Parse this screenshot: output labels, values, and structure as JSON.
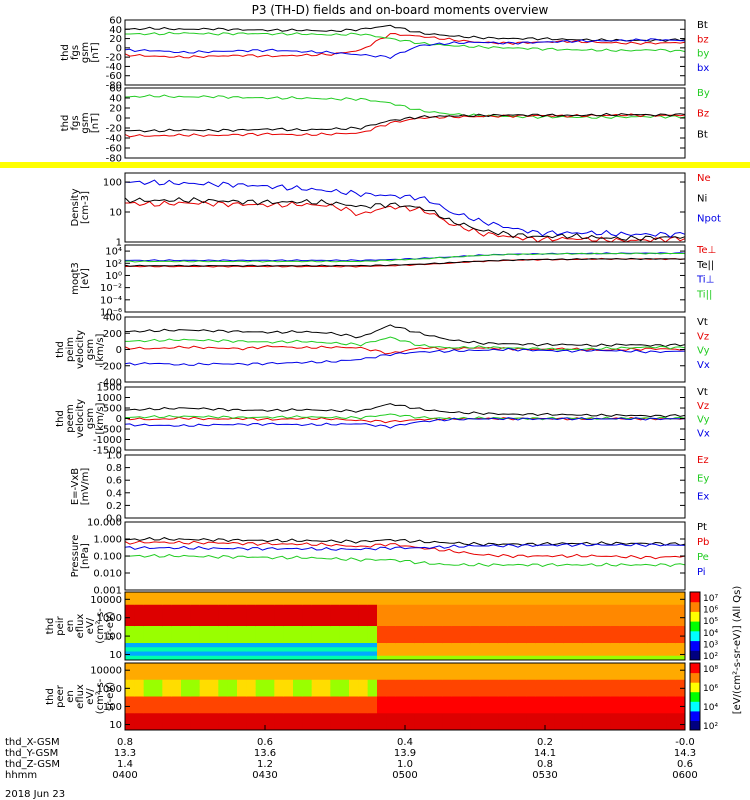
{
  "title": "P3 (TH-D) fields and on-board moments overview",
  "date_label": "2018 Jun 23",
  "colors": {
    "black": "#000000",
    "red": "#e60000",
    "green": "#22cc22",
    "blue": "#0000e6",
    "yellow": "#ffff00"
  },
  "chart_data": [
    {
      "type": "line",
      "name": "fgs-gsm",
      "ylabel": [
        "thd",
        "fgs",
        "gsm",
        "[nT]"
      ],
      "ylim": [
        -80,
        60
      ],
      "ticks": [
        "60",
        "40",
        "20",
        "0",
        "-20",
        "-40",
        "-60",
        "-80"
      ],
      "tick_values": [
        60,
        40,
        20,
        0,
        -20,
        -40,
        -60,
        -80
      ],
      "series": [
        {
          "name": "Bt",
          "color": "#000000",
          "values": [
            40,
            42,
            40,
            41,
            39,
            38,
            38,
            36,
            40,
            48,
            32,
            26,
            22,
            20,
            20,
            18,
            17,
            16,
            16,
            18
          ]
        },
        {
          "name": "bz",
          "color": "#e60000",
          "values": [
            -15,
            -18,
            -20,
            -18,
            -16,
            -18,
            -16,
            -14,
            -5,
            30,
            25,
            18,
            12,
            10,
            12,
            14,
            12,
            10,
            10,
            12
          ]
        },
        {
          "name": "by",
          "color": "#22cc22",
          "values": [
            30,
            30,
            32,
            30,
            31,
            30,
            30,
            28,
            30,
            20,
            10,
            5,
            2,
            0,
            -2,
            -4,
            -5,
            -6,
            -4,
            -8
          ]
        },
        {
          "name": "bx",
          "color": "#0000e6",
          "values": [
            -5,
            -6,
            -10,
            -8,
            -6,
            -5,
            -8,
            -10,
            -15,
            -20,
            5,
            10,
            12,
            10,
            12,
            14,
            15,
            16,
            18,
            15
          ]
        }
      ]
    },
    {
      "type": "line",
      "name": "fgs-gsm-2",
      "ylabel": [
        "thd",
        "fgs",
        "gsm",
        "[nT]"
      ],
      "ylim": [
        -80,
        60
      ],
      "ticks": [
        "60",
        "40",
        "20",
        "0",
        "-20",
        "-40",
        "-60",
        "-80"
      ],
      "tick_values": [
        60,
        40,
        20,
        0,
        -20,
        -40,
        -60,
        -80
      ],
      "series": [
        {
          "name": "By",
          "color": "#22cc22",
          "values": [
            42,
            44,
            42,
            43,
            41,
            40,
            40,
            38,
            38,
            30,
            15,
            8,
            5,
            3,
            2,
            2,
            1,
            2,
            3,
            2
          ]
        },
        {
          "name": "Bz",
          "color": "#e60000",
          "values": [
            -35,
            -36,
            -34,
            -35,
            -33,
            -32,
            -34,
            -32,
            -30,
            -10,
            0,
            2,
            3,
            4,
            5,
            4,
            5,
            6,
            5,
            6
          ]
        },
        {
          "name": "Bt",
          "color": "#000000",
          "values": [
            -25,
            -26,
            -24,
            -25,
            -24,
            -22,
            -24,
            -22,
            -20,
            -5,
            2,
            4,
            5,
            6,
            6,
            5,
            6,
            7,
            6,
            7
          ]
        }
      ]
    },
    {
      "type": "bar",
      "name": "status-bar",
      "series": [
        {
          "name": "flag",
          "color": "#ffff00",
          "values": [
            1
          ]
        }
      ]
    },
    {
      "type": "line",
      "name": "density",
      "scale": "log",
      "ylabel": [
        "Density",
        "[cm-3]"
      ],
      "ylim": [
        1,
        200
      ],
      "ticks": [
        "100",
        "10",
        "1"
      ],
      "tick_values": [
        100,
        10,
        1
      ],
      "series": [
        {
          "name": "Ne",
          "color": "#e60000",
          "values": [
            20,
            18,
            20,
            19,
            18,
            17,
            18,
            16,
            8,
            15,
            12,
            4,
            2,
            1.5,
            1.2,
            1.3,
            1.2,
            1.1,
            1.2,
            1.3
          ]
        },
        {
          "name": "Ni",
          "color": "#000000",
          "values": [
            25,
            24,
            25,
            24,
            22,
            21,
            22,
            20,
            15,
            18,
            14,
            5,
            2.5,
            1.8,
            1.5,
            1.6,
            1.4,
            1.3,
            1.4,
            1.5
          ]
        },
        {
          "name": "Npot",
          "color": "#0000e6",
          "values": [
            100,
            95,
            90,
            85,
            80,
            70,
            60,
            50,
            40,
            35,
            30,
            10,
            5,
            3,
            2,
            2,
            2,
            1.8,
            1.8,
            1.8
          ]
        }
      ]
    },
    {
      "type": "line",
      "name": "temperature",
      "scale": "log",
      "ylabel": [
        "moqt3",
        "[eV]"
      ],
      "ylim": [
        1e-06,
        100000
      ],
      "ticks": [
        "10⁴",
        "10²",
        "10⁰",
        "10⁻²",
        "10⁻⁴",
        "10⁻⁶"
      ],
      "tick_values": [
        10000,
        100,
        1,
        0.01,
        0.0001,
        1e-06
      ],
      "series": [
        {
          "name": "Te⊥",
          "color": "#e60000",
          "values": [
            30,
            30,
            30,
            30,
            30,
            30,
            30,
            30,
            30,
            40,
            60,
            100,
            200,
            300,
            400,
            400,
            500,
            500,
            500,
            500
          ]
        },
        {
          "name": "Te||",
          "color": "#000000",
          "values": [
            40,
            40,
            40,
            40,
            40,
            40,
            40,
            40,
            40,
            50,
            70,
            120,
            220,
            320,
            420,
            450,
            520,
            520,
            520,
            520
          ]
        },
        {
          "name": "Ti⊥",
          "color": "#0000e6",
          "values": [
            300,
            300,
            300,
            300,
            300,
            300,
            300,
            300,
            300,
            400,
            600,
            1000,
            2000,
            3000,
            3500,
            4000,
            4000,
            4500,
            4500,
            4500
          ]
        },
        {
          "name": "Ti||",
          "color": "#22cc22",
          "values": [
            200,
            200,
            200,
            200,
            200,
            200,
            200,
            200,
            200,
            300,
            500,
            900,
            1800,
            2800,
            3200,
            3600,
            3800,
            4000,
            4000,
            4000
          ]
        }
      ]
    },
    {
      "type": "line",
      "name": "peim-velocity",
      "ylabel": [
        "thd",
        "peim",
        "velocity",
        "gsm",
        "[km/s]"
      ],
      "ylim": [
        -400,
        400
      ],
      "ticks": [
        "400",
        "200",
        "0",
        "-200",
        "-400"
      ],
      "tick_values": [
        400,
        200,
        0,
        -200,
        -400
      ],
      "series": [
        {
          "name": "Vt",
          "color": "#000000",
          "values": [
            220,
            230,
            240,
            230,
            220,
            210,
            220,
            200,
            150,
            300,
            200,
            120,
            80,
            70,
            60,
            60,
            50,
            60,
            50,
            60
          ]
        },
        {
          "name": "Vz",
          "color": "#e60000",
          "values": [
            20,
            10,
            30,
            20,
            10,
            40,
            20,
            30,
            20,
            -50,
            20,
            10,
            20,
            10,
            0,
            10,
            -10,
            0,
            10,
            0
          ]
        },
        {
          "name": "Vy",
          "color": "#22cc22",
          "values": [
            100,
            110,
            120,
            110,
            100,
            90,
            100,
            80,
            60,
            150,
            50,
            20,
            30,
            20,
            10,
            0,
            10,
            20,
            30,
            20
          ]
        },
        {
          "name": "Vx",
          "color": "#0000e6",
          "values": [
            -180,
            -170,
            -190,
            -175,
            -180,
            -170,
            -160,
            -150,
            -120,
            -60,
            -30,
            -20,
            -10,
            0,
            -10,
            -20,
            -10,
            -20,
            -30,
            -20
          ]
        }
      ]
    },
    {
      "type": "line",
      "name": "peem-velocity",
      "ylabel": [
        "thd",
        "peem",
        "velocity",
        "gsm",
        "[km/s]"
      ],
      "ylim": [
        -1500,
        1500
      ],
      "ticks": [
        "1500",
        "1000",
        "500",
        "0",
        "-500",
        "-1000",
        "-1500"
      ],
      "tick_values": [
        1500,
        1000,
        500,
        0,
        -500,
        -1000,
        -1500
      ],
      "series": [
        {
          "name": "Vt",
          "color": "#000000",
          "values": [
            400,
            450,
            500,
            450,
            400,
            380,
            420,
            380,
            350,
            700,
            450,
            300,
            250,
            200,
            200,
            180,
            150,
            150,
            120,
            150
          ]
        },
        {
          "name": "Vz",
          "color": "#e60000",
          "values": [
            0,
            -50,
            20,
            -30,
            0,
            -50,
            0,
            -20,
            -100,
            -150,
            -50,
            -20,
            0,
            -10,
            0,
            -20,
            -10,
            0,
            -20,
            0
          ]
        },
        {
          "name": "Vy",
          "color": "#22cc22",
          "values": [
            50,
            80,
            100,
            80,
            50,
            60,
            80,
            50,
            40,
            200,
            50,
            0,
            20,
            10,
            0,
            10,
            0,
            10,
            20,
            10
          ]
        },
        {
          "name": "Vx",
          "color": "#0000e6",
          "values": [
            -300,
            -320,
            -350,
            -300,
            -280,
            -260,
            -300,
            -280,
            -250,
            -400,
            -150,
            -50,
            -20,
            -10,
            -20,
            -10,
            -20,
            -10,
            -20,
            -10
          ]
        }
      ]
    },
    {
      "type": "line",
      "name": "efield",
      "ylabel": [
        "E=-VxB",
        "[mV/m]"
      ],
      "ylim": [
        0,
        1
      ],
      "ticks": [
        "1.0",
        "0.8",
        "0.6",
        "0.4",
        "0.2",
        "0.0"
      ],
      "tick_values": [
        1,
        0.8,
        0.6,
        0.4,
        0.2,
        0
      ],
      "series": [
        {
          "name": "Ez",
          "color": "#e60000",
          "values": []
        },
        {
          "name": "Ey",
          "color": "#22cc22",
          "values": []
        },
        {
          "name": "Ex",
          "color": "#0000e6",
          "values": []
        }
      ]
    },
    {
      "type": "line",
      "name": "pressure",
      "scale": "log",
      "ylabel": [
        "Pressure",
        "[nPa]"
      ],
      "ylim": [
        0.001,
        10
      ],
      "ticks": [
        "10.000",
        "1.000",
        "0.100",
        "0.010",
        "0.001"
      ],
      "tick_values": [
        10,
        1,
        0.1,
        0.01,
        0.001
      ],
      "series": [
        {
          "name": "Pt",
          "color": "#000000",
          "values": [
            0.9,
            1.0,
            0.95,
            0.9,
            0.85,
            0.8,
            0.8,
            0.75,
            0.7,
            0.9,
            0.7,
            0.6,
            0.5,
            0.5,
            0.5,
            0.55,
            0.55,
            0.55,
            0.55,
            0.5
          ]
        },
        {
          "name": "Pb",
          "color": "#e60000",
          "values": [
            0.6,
            0.65,
            0.6,
            0.6,
            0.55,
            0.5,
            0.5,
            0.45,
            0.35,
            0.5,
            0.3,
            0.2,
            0.12,
            0.1,
            0.1,
            0.1,
            0.1,
            0.09,
            0.08,
            0.1
          ]
        },
        {
          "name": "Pe",
          "color": "#22cc22",
          "values": [
            0.1,
            0.1,
            0.1,
            0.09,
            0.09,
            0.08,
            0.08,
            0.07,
            0.06,
            0.06,
            0.04,
            0.03,
            0.03,
            0.03,
            0.03,
            0.03,
            0.03,
            0.03,
            0.03,
            0.03
          ]
        },
        {
          "name": "Pi",
          "color": "#0000e6",
          "values": [
            0.3,
            0.3,
            0.3,
            0.28,
            0.28,
            0.27,
            0.27,
            0.25,
            0.25,
            0.3,
            0.3,
            0.35,
            0.4,
            0.4,
            0.42,
            0.45,
            0.45,
            0.45,
            0.45,
            0.42
          ]
        }
      ]
    },
    {
      "type": "heatmap",
      "name": "peir-en-eflux",
      "scale": "log",
      "ylabel": [
        "thd",
        "peir",
        "en",
        "eflux",
        "eV/",
        "(cm²-s-",
        "sr-eV)"
      ],
      "ylim": [
        5,
        25000
      ],
      "ticks": [
        "10000",
        "1000",
        "100",
        "10"
      ],
      "tick_values": [
        10000,
        1000,
        100,
        10
      ],
      "colorbar_ticks": [
        "10⁷",
        "10⁶",
        "10⁵",
        "10⁴",
        "10³",
        "10²"
      ]
    },
    {
      "type": "heatmap",
      "name": "peer-en-eflux",
      "scale": "log",
      "ylabel": [
        "thd",
        "peer",
        "en",
        "eflux",
        "eV/",
        "(cm²-s-",
        "sr-eV)"
      ],
      "ylim": [
        5,
        25000
      ],
      "ticks": [
        "10000",
        "1000",
        "100",
        "10"
      ],
      "tick_values": [
        10000,
        1000,
        100,
        10
      ],
      "colorbar_ticks": [
        "10⁸",
        "10⁶",
        "10⁴",
        "10²"
      ],
      "colorbar_label": "[eV/(cm²-s-sr-eV)] (All Qs)"
    }
  ],
  "x_axis": {
    "rows": [
      {
        "label": "thd_X-GSM",
        "values": [
          "0.8",
          "0.6",
          "0.4",
          "0.2",
          "-0.0"
        ]
      },
      {
        "label": "thd_Y-GSM",
        "values": [
          "13.3",
          "13.6",
          "13.9",
          "14.1",
          "14.3"
        ]
      },
      {
        "label": "thd_Z-GSM",
        "values": [
          "1.4",
          "1.2",
          "1.0",
          "0.8",
          "0.6"
        ]
      },
      {
        "label": "hhmm",
        "values": [
          "0400",
          "0430",
          "0500",
          "0530",
          "0600"
        ]
      }
    ]
  }
}
